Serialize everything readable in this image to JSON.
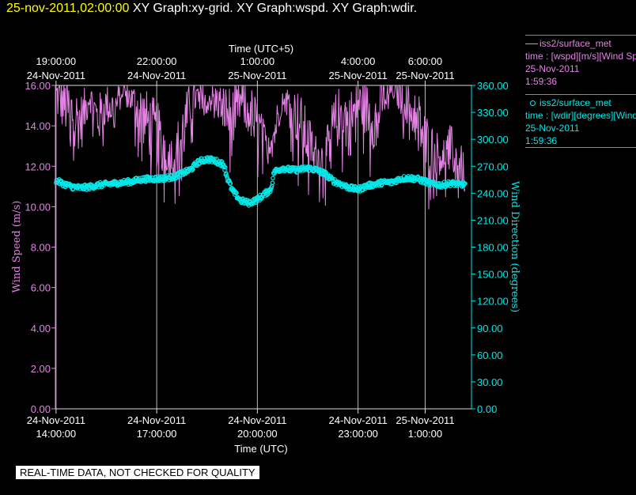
{
  "header": {
    "timestamp": "25-nov-2011,02:00:00",
    "graphs": "XY Graph:xy-grid.  XY Graph:wspd.  XY Graph:wdir."
  },
  "legend": {
    "series1": {
      "title": "iss2/surface_met",
      "line1": "time : [wspd][m/s][Wind Speed]",
      "line2": "25-Nov-2011",
      "line3": "1:59:36"
    },
    "series2": {
      "title": "iss2/surface_met",
      "line1": "time : [wdir][degrees][Wind Direction]",
      "line2": "25-Nov-2011",
      "line3": "1:59:36"
    }
  },
  "banner": "REAL-TIME DATA, NOT CHECKED FOR QUALITY",
  "colors": {
    "wspd": "#e383e3",
    "wdir": "#00e8e8",
    "grid": "#bbbbbb",
    "stamp": "#ffff00"
  },
  "chart_data": {
    "type": "line",
    "top_axis_title": "Time (UTC+5)",
    "xlabel": "Time (UTC)",
    "ylabel_left": "Wind Speed (m/s)",
    "ylabel_right": "Wind Direction (degrees)",
    "x_unit": "hours since 24-Nov-2011 14:00 UTC",
    "xlim": [
      -0.02,
      12.38
    ],
    "ylim_left": [
      0,
      16
    ],
    "ylim_right": [
      0,
      360
    ],
    "left_ticks": [
      "0.00",
      "2.00",
      "4.00",
      "6.00",
      "8.00",
      "10.00",
      "12.00",
      "14.00",
      "16.00"
    ],
    "right_ticks": [
      "0.00",
      "30.00",
      "60.00",
      "90.00",
      "120.00",
      "150.00",
      "180.00",
      "210.00",
      "240.00",
      "270.00",
      "300.00",
      "330.00",
      "360.00"
    ],
    "bottom_ticks": [
      {
        "x": 0,
        "date": "24-Nov-2011",
        "time": "14:00:00"
      },
      {
        "x": 3,
        "date": "24-Nov-2011",
        "time": "17:00:00"
      },
      {
        "x": 6,
        "date": "24-Nov-2011",
        "time": "20:00:00"
      },
      {
        "x": 9,
        "date": "24-Nov-2011",
        "time": "23:00:00"
      },
      {
        "x": 11,
        "date": "25-Nov-2011",
        "time": "1:00:00"
      }
    ],
    "top_ticks": [
      {
        "x": 0,
        "time": "19:00:00",
        "date": "24-Nov-2011"
      },
      {
        "x": 3,
        "time": "22:00:00",
        "date": "24-Nov-2011"
      },
      {
        "x": 6,
        "time": "1:00:00",
        "date": "25-Nov-2011"
      },
      {
        "x": 9,
        "time": "4:00:00",
        "date": "25-Nov-2011"
      },
      {
        "x": 11,
        "time": "6:00:00",
        "date": "25-Nov-2011"
      }
    ],
    "series": [
      {
        "name": "wspd",
        "axis": "left",
        "style": "line",
        "x": [
          0,
          0.25,
          0.5,
          0.75,
          1.0,
          1.25,
          1.5,
          1.75,
          2.0,
          2.25,
          2.5,
          2.75,
          3.0,
          3.25,
          3.5,
          3.75,
          4.0,
          4.25,
          4.5,
          4.75,
          5.0,
          5.25,
          5.5,
          5.75,
          6.0,
          6.25,
          6.5,
          6.75,
          7.0,
          7.25,
          7.5,
          7.75,
          8.0,
          8.25,
          8.5,
          8.75,
          9.0,
          9.25,
          9.5,
          9.75,
          10.0,
          10.25,
          10.5,
          10.75,
          11.0,
          11.25,
          11.5,
          11.75,
          12.0,
          12.2
        ],
        "y": [
          15.5,
          15.0,
          14.6,
          14.2,
          15.5,
          14.3,
          15.1,
          14.8,
          15.8,
          15.3,
          14.8,
          14.1,
          13.6,
          13.0,
          12.4,
          13.5,
          15.0,
          15.6,
          15.4,
          15.3,
          14.9,
          14.2,
          15.2,
          14.8,
          14.0,
          13.2,
          13.6,
          15.5,
          15.0,
          14.2,
          13.3,
          12.6,
          12.3,
          13.8,
          14.8,
          14.1,
          15.2,
          14.8,
          14.3,
          15.3,
          15.8,
          15.4,
          15.1,
          14.6,
          13.2,
          12.8,
          12.5,
          12.9,
          12.2,
          11.5
        ],
        "noise": [
          1.2,
          1.4,
          1.6,
          1.5,
          0.7,
          1.3,
          1.0,
          1.2,
          0.4,
          0.8,
          1.4,
          1.6,
          1.7,
          1.4,
          1.0,
          1.8,
          1.2,
          0.5,
          0.7,
          0.8,
          1.2,
          1.8,
          1.0,
          1.4,
          1.4,
          0.8,
          1.2,
          0.6,
          1.0,
          1.6,
          1.4,
          1.0,
          1.0,
          1.6,
          1.4,
          1.8,
          1.0,
          1.4,
          1.6,
          1.0,
          0.4,
          0.8,
          1.0,
          1.4,
          1.6,
          1.2,
          1.0,
          1.2,
          1.2,
          1.0
        ]
      },
      {
        "name": "wdir",
        "axis": "right",
        "style": "circles",
        "x": [
          0,
          0.25,
          0.5,
          0.75,
          1.0,
          1.25,
          1.5,
          1.75,
          2.0,
          2.25,
          2.5,
          2.75,
          3.0,
          3.25,
          3.5,
          3.75,
          4.0,
          4.25,
          4.5,
          4.75,
          5.0,
          5.1,
          5.25,
          5.5,
          5.75,
          6.0,
          6.25,
          6.4,
          6.5,
          6.75,
          7.0,
          7.25,
          7.5,
          7.75,
          8.0,
          8.25,
          8.5,
          8.75,
          9.0,
          9.25,
          9.5,
          9.75,
          10.0,
          10.25,
          10.5,
          10.75,
          11.0,
          11.25,
          11.5,
          11.75,
          12.0,
          12.2
        ],
        "y": [
          254,
          250,
          247,
          246,
          247,
          249,
          250,
          251,
          252,
          253,
          255,
          256,
          256,
          257,
          258,
          262,
          266,
          275,
          278,
          276,
          272,
          258,
          243,
          232,
          229,
          233,
          240,
          244,
          264,
          268,
          266,
          266,
          268,
          266,
          262,
          254,
          250,
          246,
          244,
          248,
          250,
          252,
          252,
          256,
          257,
          256,
          253,
          250,
          249,
          251,
          250,
          250
        ],
        "noise": [
          3,
          3,
          3,
          3,
          3,
          3,
          3,
          3,
          3,
          3,
          3,
          3,
          3,
          3,
          3,
          3,
          3,
          3,
          3,
          3,
          3,
          4,
          3,
          3,
          3,
          3,
          3,
          3,
          3,
          3,
          3,
          3,
          3,
          3,
          3,
          3,
          3,
          3,
          3,
          3,
          3,
          3,
          3,
          3,
          3,
          3,
          3,
          3,
          3,
          3,
          3,
          3
        ]
      }
    ]
  }
}
